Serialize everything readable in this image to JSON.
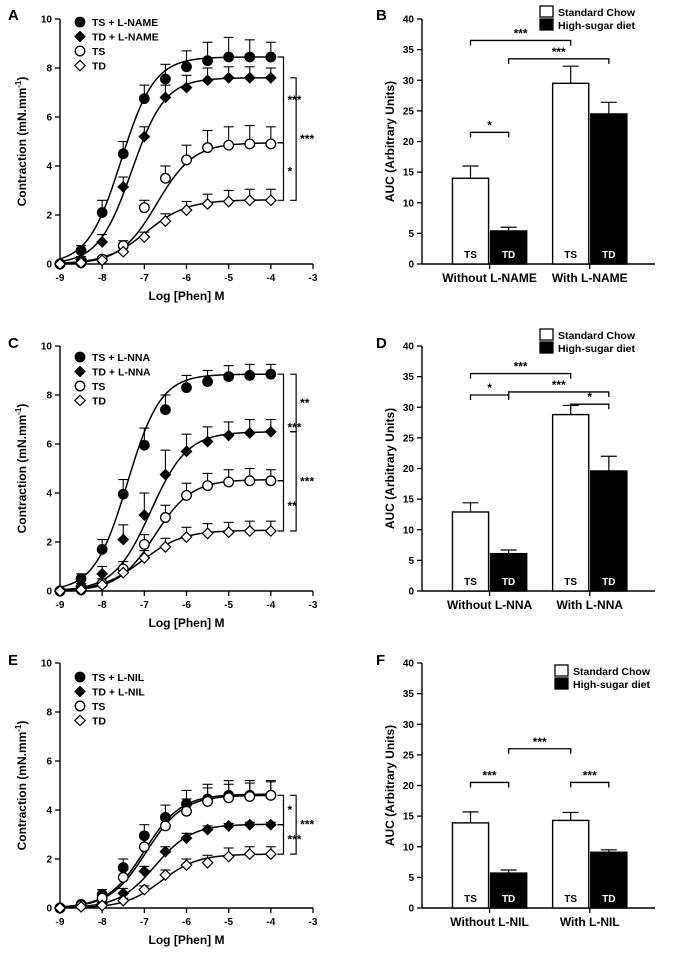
{
  "chart_data": [
    {
      "id": "A",
      "type": "line",
      "panel_letter": "A",
      "xlabel": "Log [Phen] M",
      "ylabel": "Contraction (mN.mm",
      "ylabel_sup": "-1",
      "ylabel_close": ")",
      "xlim": [
        -9,
        -3
      ],
      "ylim": [
        0,
        10
      ],
      "xticks": [
        -9,
        -8,
        -7,
        -6,
        -5,
        -4,
        -3
      ],
      "xtick_labels": [
        "-9",
        "-8",
        "-7",
        "-6",
        "-5",
        "-4",
        "-3"
      ],
      "yticks": [
        0,
        2,
        4,
        6,
        8,
        10
      ],
      "ytick_labels": [
        "0",
        "2",
        "4",
        "6",
        "8",
        "10"
      ],
      "x": [
        -9,
        -8.5,
        -8,
        -7.5,
        -7,
        -6.5,
        -6,
        -5.5,
        -5,
        -4.5,
        -4
      ],
      "series": [
        {
          "name": "TS + L-NAME",
          "marker": "filled-circle",
          "values": [
            0,
            0.55,
            2.1,
            4.5,
            6.75,
            7.55,
            8.05,
            8.3,
            8.45,
            8.45,
            8.45
          ],
          "errors": [
            0,
            0.2,
            0.5,
            0.5,
            0.55,
            0.6,
            0.65,
            0.75,
            0.8,
            0.7,
            0.6
          ],
          "fit": {
            "bottom": 0,
            "top": 8.45,
            "logec50": -7.55,
            "hill": 1.1
          }
        },
        {
          "name": "TD + L-NAME",
          "marker": "filled-diamond",
          "values": [
            0,
            0.2,
            0.9,
            3.15,
            5.2,
            6.8,
            7.2,
            7.5,
            7.6,
            7.6,
            7.6
          ],
          "errors": [
            0,
            0.1,
            0.3,
            0.4,
            0.4,
            0.5,
            0.5,
            0.5,
            0.45,
            0.45,
            0.4
          ],
          "fit": {
            "bottom": 0,
            "top": 7.6,
            "logec50": -7.3,
            "hill": 1.1
          }
        },
        {
          "name": "TS",
          "marker": "open-circle",
          "values": [
            0,
            0.05,
            0.2,
            0.75,
            2.3,
            3.5,
            4.25,
            4.75,
            4.85,
            4.9,
            4.9
          ],
          "errors": [
            0,
            0.05,
            0.1,
            0.2,
            0.3,
            0.5,
            0.6,
            0.7,
            0.75,
            0.75,
            0.7
          ],
          "fit": {
            "bottom": 0,
            "top": 4.95,
            "logec50": -6.7,
            "hill": 1.0
          }
        },
        {
          "name": "TD",
          "marker": "open-diamond",
          "values": [
            0,
            0.05,
            0.15,
            0.5,
            1.1,
            1.75,
            2.2,
            2.45,
            2.55,
            2.6,
            2.6
          ],
          "errors": [
            0,
            0.05,
            0.1,
            0.15,
            0.2,
            0.3,
            0.35,
            0.4,
            0.45,
            0.45,
            0.45
          ],
          "fit": {
            "bottom": 0,
            "top": 2.62,
            "logec50": -6.95,
            "hill": 0.9
          }
        }
      ],
      "significance": [
        {
          "label": "***",
          "x": -3.7,
          "y_from": 8.45,
          "y_to": 4.95
        },
        {
          "label": "*",
          "x": -3.7,
          "y_from": 4.95,
          "y_to": 2.6
        },
        {
          "label": "***",
          "x": -3.4,
          "y_from": 7.6,
          "y_to": 2.6
        }
      ]
    },
    {
      "id": "B",
      "type": "bar",
      "panel_letter": "B",
      "ylabel": "AUC (Arbitrary Units)",
      "ylim": [
        0,
        40
      ],
      "yticks": [
        0,
        5,
        10,
        15,
        20,
        25,
        30,
        35,
        40
      ],
      "ytick_labels": [
        "0",
        "5",
        "10",
        "15",
        "20",
        "25",
        "30",
        "35",
        "40"
      ],
      "categories": [
        "Without L-NAME",
        "With L-NAME"
      ],
      "legend": [
        "Standard Chow",
        "High-sugar diet"
      ],
      "bar_labels": [
        "TS",
        "TD"
      ],
      "series": [
        {
          "name": "Standard Chow",
          "values": [
            14.0,
            29.5
          ],
          "errors": [
            2.0,
            2.8
          ]
        },
        {
          "name": "High-sugar diet",
          "values": [
            5.4,
            24.5
          ],
          "errors": [
            0.6,
            1.9
          ]
        }
      ],
      "significance": [
        {
          "label": "***",
          "from": [
            0,
            0
          ],
          "to": [
            1,
            0
          ],
          "y": 36.5
        },
        {
          "label": "***",
          "from": [
            0,
            1
          ],
          "to": [
            1,
            1
          ],
          "y": 33.5
        },
        {
          "label": "*",
          "from": [
            0,
            0
          ],
          "to": [
            0,
            1
          ],
          "y": 21.5
        }
      ]
    },
    {
      "id": "C",
      "type": "line",
      "panel_letter": "C",
      "xlabel": "Log [Phen] M",
      "ylabel": "Contraction (mN.mm",
      "ylabel_sup": "-1",
      "ylabel_close": ")",
      "xlim": [
        -9,
        -3
      ],
      "ylim": [
        0,
        10
      ],
      "xticks": [
        -9,
        -8,
        -7,
        -6,
        -5,
        -4,
        -3
      ],
      "xtick_labels": [
        "-9",
        "-8",
        "-7",
        "-6",
        "-5",
        "-4",
        "-3"
      ],
      "yticks": [
        0,
        2,
        4,
        6,
        8,
        10
      ],
      "ytick_labels": [
        "0",
        "2",
        "4",
        "6",
        "8",
        "10"
      ],
      "x": [
        -9,
        -8.5,
        -8,
        -7.5,
        -7,
        -6.5,
        -6,
        -5.5,
        -5,
        -4.5,
        -4
      ],
      "series": [
        {
          "name": "TS + L-NNA",
          "marker": "filled-circle",
          "values": [
            0,
            0.5,
            1.7,
            3.95,
            5.95,
            7.4,
            8.3,
            8.55,
            8.75,
            8.8,
            8.85
          ],
          "errors": [
            0,
            0.2,
            0.4,
            0.6,
            0.7,
            0.6,
            0.5,
            0.45,
            0.45,
            0.45,
            0.4
          ],
          "fit": {
            "bottom": 0,
            "top": 8.85,
            "logec50": -7.4,
            "hill": 1.1
          }
        },
        {
          "name": "TD + L-NNA",
          "marker": "filled-diamond",
          "values": [
            0,
            0.2,
            0.7,
            2.1,
            3.1,
            4.75,
            5.7,
            6.1,
            6.35,
            6.45,
            6.5
          ],
          "errors": [
            0,
            0.1,
            0.3,
            0.6,
            0.9,
            1.0,
            0.7,
            0.6,
            0.55,
            0.55,
            0.5
          ],
          "fit": {
            "bottom": 0,
            "top": 6.5,
            "logec50": -6.85,
            "hill": 1.0
          }
        },
        {
          "name": "TS",
          "marker": "open-circle",
          "values": [
            0,
            0.05,
            0.3,
            0.9,
            1.9,
            3.0,
            3.9,
            4.3,
            4.45,
            4.5,
            4.5
          ],
          "errors": [
            0,
            0.05,
            0.2,
            0.3,
            0.4,
            0.5,
            0.5,
            0.5,
            0.5,
            0.5,
            0.45
          ],
          "fit": {
            "bottom": 0,
            "top": 4.55,
            "logec50": -6.75,
            "hill": 1.0
          }
        },
        {
          "name": "TD",
          "marker": "open-diamond",
          "values": [
            0,
            0.05,
            0.25,
            0.75,
            1.35,
            1.8,
            2.2,
            2.35,
            2.4,
            2.45,
            2.45
          ],
          "errors": [
            0,
            0.05,
            0.1,
            0.2,
            0.3,
            0.35,
            0.4,
            0.4,
            0.4,
            0.4,
            0.4
          ],
          "fit": {
            "bottom": 0,
            "top": 2.48,
            "logec50": -7.05,
            "hill": 0.9
          }
        }
      ],
      "significance": [
        {
          "label": "***",
          "x": -3.7,
          "y_from": 8.85,
          "y_to": 4.5
        },
        {
          "label": "**",
          "x": -3.7,
          "y_from": 4.5,
          "y_to": 2.45
        },
        {
          "label": "**",
          "x": -3.4,
          "y_from": 8.85,
          "y_to": 6.5
        },
        {
          "label": "***",
          "x": -3.4,
          "y_from": 6.5,
          "y_to": 2.45
        }
      ]
    },
    {
      "id": "D",
      "type": "bar",
      "panel_letter": "D",
      "ylabel": "AUC (Arbitrary Units)",
      "ylim": [
        0,
        40
      ],
      "yticks": [
        0,
        5,
        10,
        15,
        20,
        25,
        30,
        35,
        40
      ],
      "ytick_labels": [
        "0",
        "5",
        "10",
        "15",
        "20",
        "25",
        "30",
        "35",
        "40"
      ],
      "categories": [
        "Without L-NNA",
        "With L-NNA"
      ],
      "legend": [
        "Standard Chow",
        "High-sugar diet"
      ],
      "bar_labels": [
        "TS",
        "TD"
      ],
      "series": [
        {
          "name": "Standard Chow",
          "values": [
            12.9,
            28.8
          ],
          "errors": [
            1.5,
            1.5
          ]
        },
        {
          "name": "High-sugar diet",
          "values": [
            6.1,
            19.6
          ],
          "errors": [
            0.6,
            2.4
          ]
        }
      ],
      "significance": [
        {
          "label": "***",
          "from": [
            0,
            0
          ],
          "to": [
            1,
            0
          ],
          "y": 35.5
        },
        {
          "label": "***",
          "from": [
            0,
            1
          ],
          "to": [
            1,
            1
          ],
          "y": 32.5
        },
        {
          "label": "*",
          "from": [
            0,
            0
          ],
          "to": [
            0,
            1
          ],
          "y": 32.0
        },
        {
          "label": "*",
          "from": [
            1,
            0
          ],
          "to": [
            1,
            1
          ],
          "y": 30.5
        }
      ]
    },
    {
      "id": "E",
      "type": "line",
      "panel_letter": "E",
      "xlabel": "Log [Phen] M",
      "ylabel": "Contraction (mN.mm",
      "ylabel_sup": "-1",
      "ylabel_close": ")",
      "xlim": [
        -9,
        -3
      ],
      "ylim": [
        0,
        10
      ],
      "xticks": [
        -9,
        -8,
        -7,
        -6,
        -5,
        -4,
        -3
      ],
      "xtick_labels": [
        "-9",
        "-8",
        "-7",
        "-6",
        "-5",
        "-4",
        "-3"
      ],
      "yticks": [
        0,
        2,
        4,
        6,
        8,
        10
      ],
      "ytick_labels": [
        "0",
        "2",
        "4",
        "6",
        "8",
        "10"
      ],
      "x": [
        -9,
        -8.5,
        -8,
        -7.5,
        -7,
        -6.5,
        -6,
        -5.5,
        -5,
        -4.5,
        -4
      ],
      "series": [
        {
          "name": "TS + L-NIL",
          "marker": "filled-circle",
          "values": [
            0,
            0.15,
            0.55,
            1.65,
            2.95,
            3.7,
            4.25,
            4.45,
            4.6,
            4.6,
            4.6
          ],
          "errors": [
            0,
            0.05,
            0.2,
            0.35,
            0.45,
            0.5,
            0.55,
            0.6,
            0.6,
            0.6,
            0.6
          ],
          "fit": {
            "bottom": 0,
            "top": 4.65,
            "logec50": -7.0,
            "hill": 1.0
          }
        },
        {
          "name": "TD + L-NIL",
          "marker": "filled-diamond",
          "values": [
            0,
            0.05,
            0.2,
            0.6,
            1.5,
            2.3,
            2.85,
            3.2,
            3.35,
            3.4,
            3.4
          ],
          "errors": [
            0,
            0.05,
            0.1,
            0.2,
            0.2,
            0.2,
            0.2,
            0.15,
            0.1,
            0.1,
            0.1
          ],
          "fit": {
            "bottom": 0,
            "top": 3.42,
            "logec50": -6.75,
            "hill": 1.0
          }
        },
        {
          "name": "TS",
          "marker": "open-circle",
          "values": [
            0,
            0.1,
            0.4,
            1.25,
            2.5,
            3.35,
            3.95,
            4.35,
            4.5,
            4.55,
            4.6
          ],
          "errors": [
            0,
            0.05,
            0.15,
            0.3,
            0.4,
            0.45,
            0.5,
            0.55,
            0.55,
            0.55,
            0.55
          ],
          "fit": {
            "bottom": 0,
            "top": 4.6,
            "logec50": -6.95,
            "hill": 1.0
          }
        },
        {
          "name": "TD",
          "marker": "open-diamond",
          "values": [
            0,
            0.05,
            0.1,
            0.3,
            0.75,
            1.35,
            1.75,
            1.85,
            2.1,
            2.2,
            2.2
          ],
          "errors": [
            0,
            0.05,
            0.05,
            0.1,
            0.15,
            0.2,
            0.25,
            0.3,
            0.35,
            0.3,
            0.3
          ],
          "fit": {
            "bottom": 0,
            "top": 2.2,
            "logec50": -6.6,
            "hill": 1.0
          }
        }
      ],
      "significance": [
        {
          "label": "*",
          "x": -3.7,
          "y_from": 4.6,
          "y_to": 3.4
        },
        {
          "label": "***",
          "x": -3.7,
          "y_from": 3.4,
          "y_to": 2.2
        },
        {
          "label": "***",
          "x": -3.4,
          "y_from": 4.6,
          "y_to": 2.2
        }
      ]
    },
    {
      "id": "F",
      "type": "bar",
      "panel_letter": "F",
      "ylabel": "AUC (Arbitrary Units)",
      "ylim": [
        0,
        40
      ],
      "yticks": [
        0,
        5,
        10,
        15,
        20,
        25,
        30,
        35,
        40
      ],
      "ytick_labels": [
        "0",
        "5",
        "10",
        "15",
        "20",
        "25",
        "30",
        "35",
        "40"
      ],
      "categories": [
        "Without L-NIL",
        "With L-NIL"
      ],
      "legend": [
        "Standard Chow",
        "High-sugar diet"
      ],
      "bar_labels": [
        "TS",
        "TD"
      ],
      "series": [
        {
          "name": "Standard Chow",
          "values": [
            13.9,
            14.3
          ],
          "errors": [
            1.8,
            1.3
          ]
        },
        {
          "name": "High-sugar diet",
          "values": [
            5.7,
            9.1
          ],
          "errors": [
            0.5,
            0.4
          ]
        }
      ],
      "significance": [
        {
          "label": "***",
          "from": [
            0,
            1
          ],
          "to": [
            1,
            0
          ],
          "y": 26.0
        },
        {
          "label": "***",
          "from": [
            0,
            0
          ],
          "to": [
            0,
            1
          ],
          "y": 20.5
        },
        {
          "label": "***",
          "from": [
            1,
            0
          ],
          "to": [
            1,
            1
          ],
          "y": 20.5
        }
      ]
    }
  ]
}
